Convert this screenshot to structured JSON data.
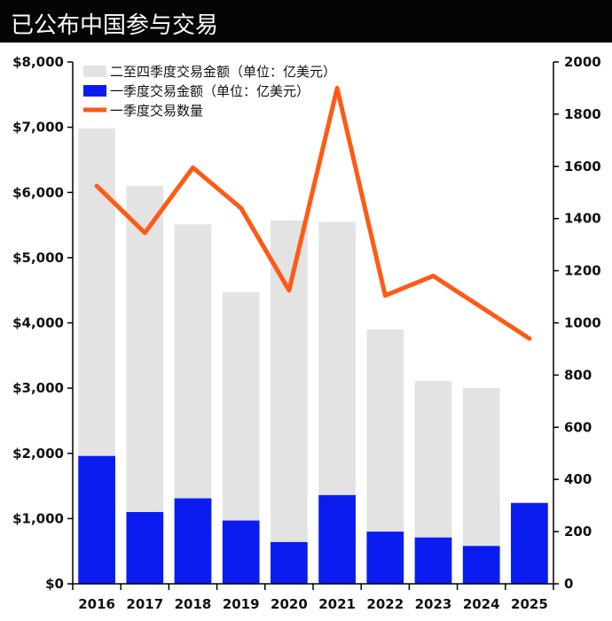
{
  "header": {
    "title": "已公布中国参与交易"
  },
  "chart_data": {
    "type": "bar",
    "categories": [
      "2016",
      "2017",
      "2018",
      "2019",
      "2020",
      "2021",
      "2022",
      "2023",
      "2024",
      "2025"
    ],
    "series": [
      {
        "name": "二至四季度交易金额（单位：亿美元）",
        "kind": "bar",
        "axis": "left",
        "color": "#e3e3e3",
        "values": [
          5020,
          5000,
          4200,
          3500,
          4930,
          4190,
          3100,
          2400,
          2420,
          0
        ]
      },
      {
        "name": "一季度交易金额（单位：亿美元）",
        "kind": "bar",
        "axis": "left",
        "color": "#0a1cf0",
        "values": [
          1960,
          1100,
          1310,
          970,
          640,
          1360,
          800,
          710,
          580,
          1240
        ]
      },
      {
        "name": "一季度交易数量",
        "kind": "line",
        "axis": "right",
        "color": "#ff5a14",
        "values": [
          1525,
          1345,
          1595,
          1440,
          1125,
          1900,
          1105,
          1180,
          1060,
          940
        ]
      }
    ],
    "bar_stacking": "stacked",
    "left_axis": {
      "ylim": [
        0,
        8000
      ],
      "ticks": [
        "$0",
        "$1,000",
        "$2,000",
        "$3,000",
        "$4,000",
        "$5,000",
        "$6,000",
        "$7,000",
        "$8,000"
      ]
    },
    "right_axis": {
      "ylim": [
        0,
        2000
      ],
      "ticks": [
        "0",
        "200",
        "400",
        "600",
        "800",
        "1000",
        "1200",
        "1400",
        "1600",
        "1800",
        "2000"
      ]
    },
    "legend_position": "top-left",
    "grid": false
  }
}
